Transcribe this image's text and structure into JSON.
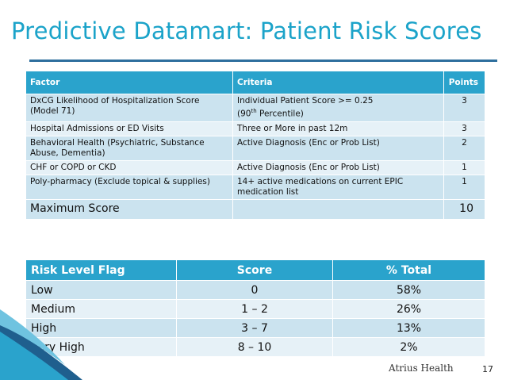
{
  "title": "Predictive Datamart: Patient Risk Scores",
  "factors_table": {
    "headers": {
      "factor": "Factor",
      "criteria": "Criteria",
      "points": "Points"
    },
    "rows": [
      {
        "factor": "DxCG Likelihood of Hospitalization Score (Model 71)",
        "criteria_line1": "Individual Patient Score >= 0.25",
        "criteria_pre": "(90",
        "criteria_sup": "th",
        "criteria_post": " Percentile)",
        "points": "3"
      },
      {
        "factor": "Hospital Admissions or ED Visits",
        "criteria": "Three or More in past 12m",
        "points": "3"
      },
      {
        "factor": "Behavioral Health (Psychiatric, Substance Abuse, Dementia)",
        "criteria": "Active Diagnosis (Enc or Prob List)",
        "points": "2"
      },
      {
        "factor": "CHF or COPD or CKD",
        "criteria": "Active Diagnosis (Enc or Prob List)",
        "points": "1"
      },
      {
        "factor": "Poly-pharmacy (Exclude topical & supplies)",
        "criteria": "14+ active medications on current EPIC medication list",
        "points": "1"
      }
    ],
    "max_score_label": "Maximum Score",
    "max_score_value": "10"
  },
  "risk_table": {
    "headers": {
      "flag": "Risk Level Flag",
      "score": "Score",
      "total": "% Total"
    },
    "rows": [
      {
        "flag": "Low",
        "score": "0",
        "total": "58%"
      },
      {
        "flag": "Medium",
        "score": "1 – 2",
        "total": "26%"
      },
      {
        "flag": "High",
        "score": "3 – 7",
        "total": "13%"
      },
      {
        "flag": "Very High",
        "score": "8 – 10",
        "total": "2%"
      }
    ]
  },
  "footer": {
    "org": "Atrius Health",
    "page": "17"
  },
  "colors": {
    "title": "#1ba3c9",
    "header": "#2aa3cc",
    "row_dark": "#cbe3ef",
    "row_light": "#e6f1f7",
    "rule": "#2e6f9e"
  }
}
